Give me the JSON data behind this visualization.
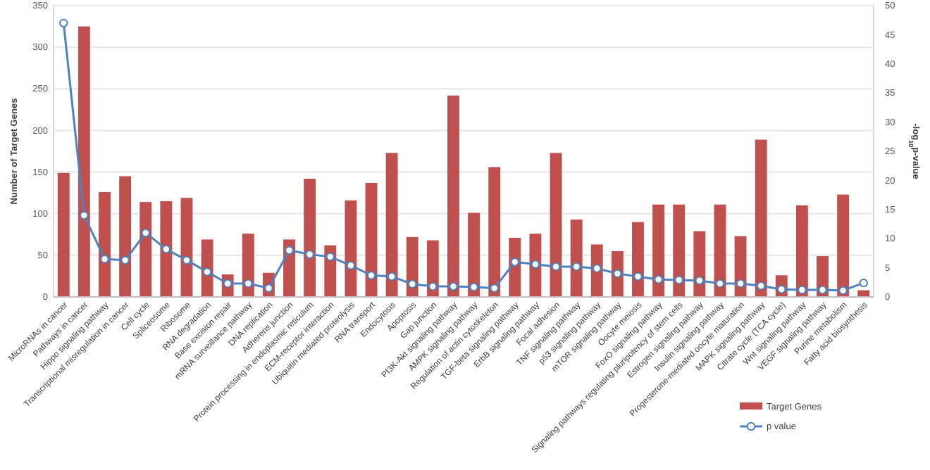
{
  "chart_data": {
    "type": "bar",
    "categories": [
      "MicroRNAs in cancer",
      "Pathways in cancer",
      "Hippo signaling pathway",
      "Transcriptional misregulation in cancer",
      "Cell cycle",
      "Spliceosome",
      "Ribosome",
      "RNA degradation",
      "Base excision repair",
      "mRNA surveillance pathway",
      "DNA replication",
      "Adherens junction",
      "Protein processing in endoplasmic reticulum",
      "ECM-receptor interaction",
      "Ubiquitin mediated proteolysis",
      "RNA transport",
      "Endocytosis",
      "Apoptosis",
      "Gap junction",
      "PI3K-Akt signaling pathway",
      "AMPK signaling pathway",
      "Regulation of actin cytoskeleton",
      "TGF-beta signaling pathway",
      "ErbB signaling pathway",
      "Focal adhesion",
      "TNF signaling pathway",
      "p53 signaling pathway",
      "mTOR signaling pathway",
      "Oocyte meiosis",
      "FoxO signaling pathway",
      "Signaling pathways regulating pluripotency of stem cells",
      "Estrogen signaling pathway",
      "Insulin signaling pathway",
      "Progesterone-mediated oocyte maturation",
      "MAPK signaling pathway",
      "Citrate cycle (TCA cycle)",
      "Wnt signaling pathway",
      "VEGF signaling pathway",
      "Purine metabolism",
      "Fatty acid biosynthesis"
    ],
    "ylabel": "Number of Target Genes",
    "y2label": "-log$_{10}$p-value",
    "series": [
      {
        "name": "Target Genes",
        "color": "#c0504d",
        "values": [
          149,
          325,
          126,
          145,
          114,
          115,
          119,
          69,
          27,
          76,
          29,
          69,
          142,
          62,
          116,
          137,
          173,
          72,
          68,
          242,
          101,
          156,
          71,
          76,
          173,
          93,
          63,
          55,
          90,
          111,
          111,
          79,
          111,
          73,
          189,
          26,
          110,
          49,
          123,
          8
        ]
      },
      {
        "name": "p value",
        "type": "line",
        "axis": "y2",
        "color": "#4f81bd",
        "marker": "circle",
        "values": [
          47,
          14,
          6.5,
          6.3,
          11,
          8.2,
          6.3,
          4.3,
          2.3,
          2.3,
          1.5,
          8,
          7.3,
          6.9,
          5.4,
          3.7,
          3.5,
          2.2,
          1.8,
          1.8,
          1.7,
          1.5,
          6,
          5.6,
          5.2,
          5.2,
          4.9,
          4,
          3.5,
          3,
          2.9,
          2.8,
          2.3,
          2.3,
          1.9,
          1.3,
          1.2,
          1.2,
          1.1,
          2.4
        ]
      }
    ],
    "ylim": [
      0,
      350
    ],
    "yticks": [
      0,
      50,
      100,
      150,
      200,
      250,
      300,
      350
    ],
    "y2lim": [
      0,
      50
    ],
    "y2ticks": [
      0,
      5,
      10,
      15,
      20,
      25,
      30,
      35,
      40,
      45,
      50
    ],
    "grid": "y",
    "legend": "bottom right"
  }
}
